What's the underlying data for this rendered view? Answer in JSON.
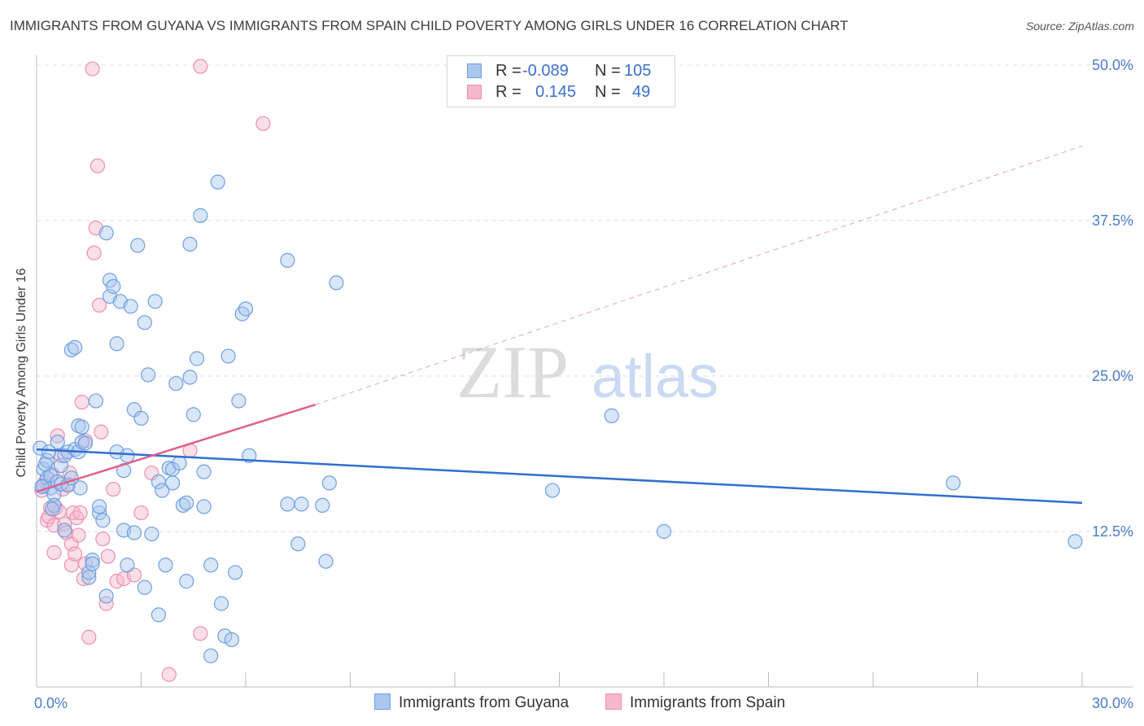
{
  "title": "IMMIGRANTS FROM GUYANA VS IMMIGRANTS FROM SPAIN CHILD POVERTY AMONG GIRLS UNDER 16 CORRELATION CHART",
  "source": "Source: ZipAtlas.com",
  "watermark": {
    "zip": "ZIP",
    "atlas": "atlas"
  },
  "legend": {
    "guyana": {
      "r_label": "R =",
      "r_value": "-0.089",
      "n_label": "N =",
      "n_value": "105"
    },
    "spain": {
      "r_label": "R =",
      "r_value": "0.145",
      "n_label": "N =",
      "n_value": "49"
    }
  },
  "colors": {
    "guyana_fill": "#a9c7f0",
    "guyana_stroke": "#6f9fe0",
    "guyana_line": "#2f6fcf",
    "spain_fill": "#f5b8cc",
    "spain_stroke": "#ec8fb0",
    "spain_line": "#e0608f",
    "grid": "#dddddd",
    "tick_text": "#4a7cc9"
  },
  "chart_data": {
    "type": "scatter",
    "title": "IMMIGRANTS FROM GUYANA VS IMMIGRANTS FROM SPAIN CHILD POVERTY AMONG GIRLS UNDER 16 CORRELATION CHART",
    "xlabel": "",
    "ylabel": "Child Poverty Among Girls Under 16",
    "xlim": [
      0,
      30
    ],
    "ylim": [
      0,
      50
    ],
    "x_tick_labels": [
      {
        "value": 0,
        "label": "0.0%"
      },
      {
        "value": 30,
        "label": "30.0%"
      }
    ],
    "y_tick_labels": [
      {
        "value": 12.5,
        "label": "12.5%"
      },
      {
        "value": 25,
        "label": "25.0%"
      },
      {
        "value": 37.5,
        "label": "37.5%"
      },
      {
        "value": 50,
        "label": "50.0%"
      }
    ],
    "x_minor_ticks": [
      3,
      6,
      9,
      12,
      15,
      18,
      21,
      24,
      27,
      30
    ],
    "legend_position": "bottom-center",
    "series": [
      {
        "name": "Immigrants from Guyana",
        "r": -0.089,
        "n": 105,
        "trend": {
          "x": [
            0,
            30
          ],
          "y": [
            19.1,
            14.8
          ]
        },
        "points": [
          [
            0.1,
            19.2
          ],
          [
            0.2,
            17.5
          ],
          [
            0.2,
            16.2
          ],
          [
            0.3,
            18.2
          ],
          [
            0.3,
            16.8
          ],
          [
            0.4,
            16.0
          ],
          [
            0.4,
            17.0
          ],
          [
            0.5,
            15.5
          ],
          [
            0.5,
            14.6
          ],
          [
            0.6,
            16.5
          ],
          [
            0.6,
            19.7
          ],
          [
            0.7,
            17.8
          ],
          [
            0.7,
            16.3
          ],
          [
            0.8,
            18.6
          ],
          [
            0.8,
            12.6
          ],
          [
            0.9,
            18.9
          ],
          [
            0.9,
            16.2
          ],
          [
            1.0,
            27.1
          ],
          [
            1.0,
            16.8
          ],
          [
            1.1,
            27.3
          ],
          [
            1.1,
            19.1
          ],
          [
            1.2,
            18.9
          ],
          [
            1.2,
            21.0
          ],
          [
            1.3,
            20.9
          ],
          [
            1.3,
            19.7
          ],
          [
            1.4,
            19.6
          ],
          [
            1.5,
            8.8
          ],
          [
            1.5,
            9.2
          ],
          [
            1.6,
            10.2
          ],
          [
            1.6,
            9.9
          ],
          [
            1.7,
            23.0
          ],
          [
            1.8,
            14.0
          ],
          [
            1.8,
            14.5
          ],
          [
            1.9,
            13.4
          ],
          [
            2.0,
            7.3
          ],
          [
            2.0,
            36.5
          ],
          [
            2.1,
            32.7
          ],
          [
            2.1,
            31.4
          ],
          [
            2.2,
            32.2
          ],
          [
            2.3,
            18.9
          ],
          [
            2.3,
            27.6
          ],
          [
            2.4,
            31.0
          ],
          [
            2.5,
            12.6
          ],
          [
            2.5,
            17.4
          ],
          [
            2.6,
            18.6
          ],
          [
            2.6,
            9.8
          ],
          [
            2.7,
            30.6
          ],
          [
            2.8,
            22.3
          ],
          [
            2.8,
            12.4
          ],
          [
            2.9,
            35.5
          ],
          [
            3.0,
            21.6
          ],
          [
            3.1,
            29.3
          ],
          [
            3.1,
            8.0
          ],
          [
            3.2,
            25.1
          ],
          [
            3.3,
            12.3
          ],
          [
            3.4,
            31.0
          ],
          [
            3.5,
            16.5
          ],
          [
            3.5,
            5.8
          ],
          [
            3.6,
            15.8
          ],
          [
            3.7,
            9.8
          ],
          [
            3.8,
            17.6
          ],
          [
            3.9,
            16.4
          ],
          [
            3.9,
            17.5
          ],
          [
            4.0,
            24.4
          ],
          [
            4.1,
            18.0
          ],
          [
            4.2,
            14.6
          ],
          [
            4.3,
            14.8
          ],
          [
            4.3,
            8.5
          ],
          [
            4.4,
            24.9
          ],
          [
            4.4,
            35.6
          ],
          [
            4.5,
            21.9
          ],
          [
            4.6,
            26.4
          ],
          [
            4.7,
            37.9
          ],
          [
            4.8,
            14.5
          ],
          [
            4.8,
            17.3
          ],
          [
            5.0,
            9.8
          ],
          [
            5.0,
            2.5
          ],
          [
            5.2,
            40.6
          ],
          [
            5.3,
            6.7
          ],
          [
            5.4,
            4.1
          ],
          [
            5.5,
            26.6
          ],
          [
            5.6,
            3.8
          ],
          [
            5.7,
            9.2
          ],
          [
            5.8,
            23.0
          ],
          [
            5.9,
            30.0
          ],
          [
            6.0,
            30.4
          ],
          [
            6.1,
            18.6
          ],
          [
            7.2,
            34.3
          ],
          [
            7.2,
            14.7
          ],
          [
            7.5,
            11.5
          ],
          [
            7.6,
            14.7
          ],
          [
            8.2,
            14.6
          ],
          [
            8.3,
            10.1
          ],
          [
            8.4,
            16.4
          ],
          [
            8.6,
            32.5
          ],
          [
            14.8,
            15.8
          ],
          [
            16.5,
            21.8
          ],
          [
            18.0,
            12.5
          ],
          [
            26.3,
            16.4
          ],
          [
            29.8,
            11.7
          ],
          [
            0.15,
            16.1
          ],
          [
            0.25,
            17.9
          ],
          [
            0.35,
            18.9
          ],
          [
            0.45,
            14.3
          ],
          [
            1.25,
            16.0
          ]
        ]
      },
      {
        "name": "Immigrants from Spain",
        "r": 0.145,
        "n": 49,
        "trend": {
          "x": [
            0,
            8.0
          ],
          "y": [
            15.7,
            22.7
          ]
        },
        "dash_extension": {
          "x": [
            8.0,
            30
          ],
          "y": [
            22.7,
            43.5
          ]
        },
        "points": [
          [
            0.15,
            15.8
          ],
          [
            0.25,
            16.5
          ],
          [
            0.3,
            13.4
          ],
          [
            0.35,
            13.7
          ],
          [
            0.4,
            14.4
          ],
          [
            0.45,
            17.1
          ],
          [
            0.5,
            13.0
          ],
          [
            0.5,
            10.8
          ],
          [
            0.55,
            14.4
          ],
          [
            0.6,
            20.2
          ],
          [
            0.65,
            14.1
          ],
          [
            0.7,
            18.6
          ],
          [
            0.75,
            15.9
          ],
          [
            0.8,
            13.1
          ],
          [
            0.85,
            12.4
          ],
          [
            0.9,
            16.3
          ],
          [
            0.95,
            17.2
          ],
          [
            1.0,
            11.5
          ],
          [
            1.0,
            9.8
          ],
          [
            1.05,
            14.0
          ],
          [
            1.1,
            10.7
          ],
          [
            1.15,
            13.6
          ],
          [
            1.2,
            12.2
          ],
          [
            1.25,
            14.0
          ],
          [
            1.3,
            22.9
          ],
          [
            1.35,
            8.7
          ],
          [
            1.4,
            19.8
          ],
          [
            1.4,
            9.9
          ],
          [
            1.5,
            4.0
          ],
          [
            1.6,
            49.7
          ],
          [
            1.65,
            34.9
          ],
          [
            1.7,
            36.9
          ],
          [
            1.75,
            41.9
          ],
          [
            1.8,
            30.7
          ],
          [
            1.85,
            20.5
          ],
          [
            1.9,
            11.9
          ],
          [
            2.0,
            6.7
          ],
          [
            2.05,
            10.5
          ],
          [
            2.2,
            15.9
          ],
          [
            2.3,
            8.5
          ],
          [
            2.5,
            8.7
          ],
          [
            2.8,
            9.0
          ],
          [
            3.0,
            14.0
          ],
          [
            3.3,
            17.2
          ],
          [
            3.8,
            1.0
          ],
          [
            4.4,
            19.0
          ],
          [
            4.7,
            4.3
          ],
          [
            4.7,
            49.9
          ],
          [
            6.5,
            45.3
          ]
        ]
      }
    ]
  },
  "bottom_legend": {
    "guyana": "Immigrants from Guyana",
    "spain": "Immigrants from Spain"
  },
  "y_axis_label": "Child Poverty Among Girls Under 16"
}
